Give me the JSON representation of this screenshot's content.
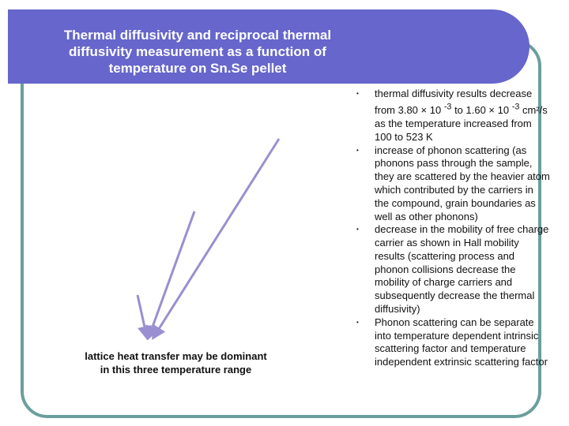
{
  "slide": {
    "title": "Thermal diffusivity and reciprocal thermal diffusivity measurement as a function of temperature on Sn.Se pellet",
    "caption": "lattice heat transfer may be dominant in this three temperature range",
    "bullet_marker": "•",
    "bullets": [
      {
        "html": "thermal diffusivity results decrease from 3.80 × 10 <sup>-3</sup> to 1.60 × 10 <sup>-3</sup> cm²/s as the temperature increased from 100 to 523 K"
      },
      {
        "html": "increase of phonon scattering (as phonons pass through the sample, they are scattered by the heavier atom which contributed by the carriers in the compound, grain boundaries as well as other phonons)"
      },
      {
        "html": "decrease in the mobility of free charge carrier as shown in Hall mobility results (scattering process and phonon collisions decrease the mobility of charge carriers and subsequently decrease the thermal diffusivity)"
      },
      {
        "html": "Phonon scattering can be separate into temperature dependent intrinsic scattering factor and temperature independent extrinsic scattering factor"
      }
    ]
  },
  "colors": {
    "title_bar": "#6666cc",
    "frame_border": "#6a9e9c",
    "arrow": "#9a8fd0"
  }
}
